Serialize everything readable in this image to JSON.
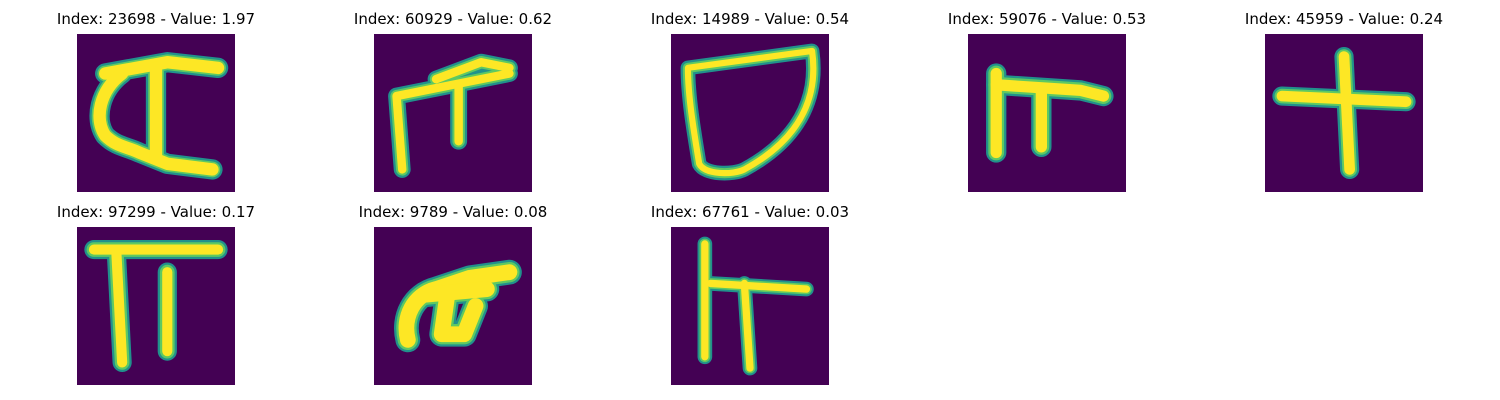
{
  "panels": [
    {
      "title": "Index: 23698 - Value: 1.97",
      "glyph": "glyph-0"
    },
    {
      "title": "Index: 60929 - Value: 0.62",
      "glyph": "glyph-1"
    },
    {
      "title": "Index: 14989 - Value: 0.54",
      "glyph": "glyph-2"
    },
    {
      "title": "Index: 59076 - Value: 0.53",
      "glyph": "glyph-3"
    },
    {
      "title": "Index: 45959 - Value: 0.24",
      "glyph": "glyph-4"
    },
    {
      "title": "Index: 97299 - Value: 0.17",
      "glyph": "glyph-5"
    },
    {
      "title": "Index: 9789 - Value: 0.08",
      "glyph": "glyph-6"
    },
    {
      "title": "Index: 67761 - Value: 0.03",
      "glyph": "glyph-7"
    }
  ],
  "colors": {
    "background": "#440154",
    "stroke_outer": "#21918c",
    "stroke_mid": "#5ec962",
    "stroke_core": "#fde725"
  }
}
